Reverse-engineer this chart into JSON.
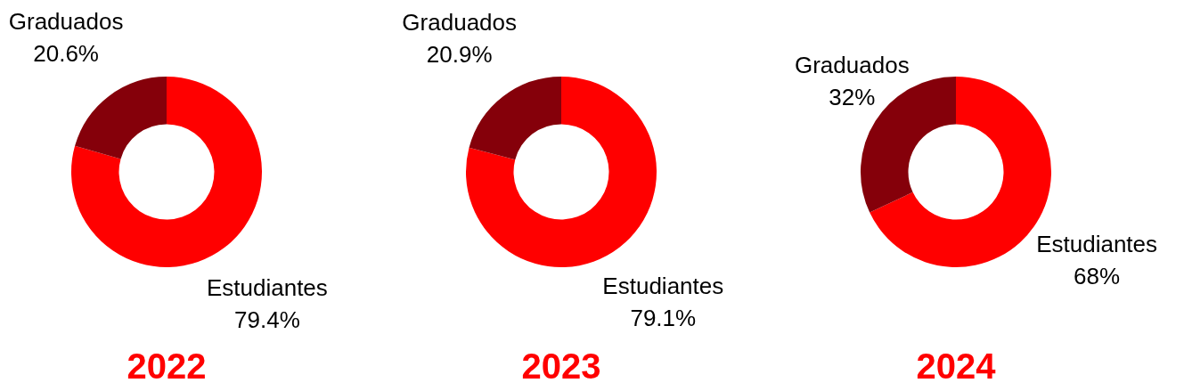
{
  "chart_data": [
    {
      "type": "donut",
      "title": "2022",
      "categories": [
        "Estudiantes",
        "Graduados"
      ],
      "values": [
        79.4,
        20.6
      ],
      "colors": [
        "#ff0000",
        "#85000a"
      ],
      "value_labels": [
        "79.4%",
        "20.6%"
      ]
    },
    {
      "type": "donut",
      "title": "2023",
      "categories": [
        "Estudiantes",
        "Graduados"
      ],
      "values": [
        79.1,
        20.9
      ],
      "colors": [
        "#ff0000",
        "#85000a"
      ],
      "value_labels": [
        "79.1%",
        "20.9%"
      ]
    },
    {
      "type": "donut",
      "title": "2024",
      "categories": [
        "Estudiantes",
        "Graduados"
      ],
      "values": [
        68,
        32
      ],
      "colors": [
        "#ff0000",
        "#85000a"
      ],
      "value_labels": [
        "68%",
        "32%"
      ]
    }
  ]
}
